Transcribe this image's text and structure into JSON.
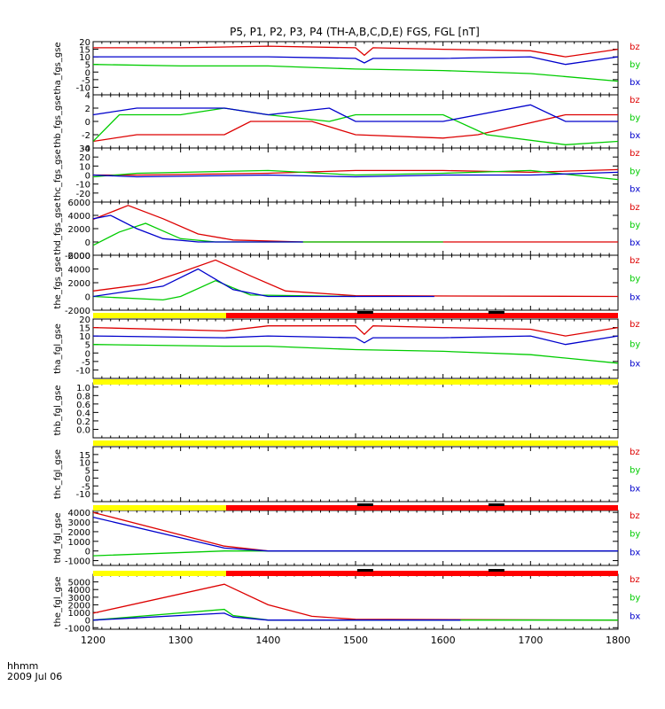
{
  "title": "P5, P1, P2, P3, P4 (TH-A,B,C,D,E) FGS, FGL [nT]",
  "time_axis": {
    "label_line1": "hhmm",
    "label_line2": "2009 Jul 06",
    "ticks": [
      "1200",
      "1300",
      "1400",
      "1500",
      "1600",
      "1700",
      "1800"
    ],
    "range": [
      1200,
      1800
    ]
  },
  "colors": {
    "bz": "#dd0000",
    "by": "#00cc00",
    "bx": "#0000cc",
    "axis": "#000000",
    "bar_yellow": "#ffff00",
    "bar_red": "#ff0000"
  },
  "chart_data": [
    {
      "type": "line",
      "ylabel": "tha_fgs_gse",
      "ylim": [
        -15,
        20
      ],
      "yticks": [
        "20",
        "15",
        "10",
        "5",
        "0",
        "-5",
        "-10"
      ],
      "legend": [
        "bz",
        "by",
        "bx"
      ],
      "series": [
        {
          "name": "bz",
          "x": [
            1200,
            1300,
            1400,
            1500,
            1510,
            1520,
            1600,
            1700,
            1740,
            1800
          ],
          "y": [
            16,
            16,
            17,
            16,
            11,
            16,
            15,
            14,
            10,
            15
          ]
        },
        {
          "name": "by",
          "x": [
            1200,
            1300,
            1400,
            1500,
            1600,
            1700,
            1800
          ],
          "y": [
            5,
            4,
            4,
            2,
            1,
            -1,
            -6
          ]
        },
        {
          "name": "bx",
          "x": [
            1200,
            1300,
            1400,
            1500,
            1510,
            1520,
            1600,
            1700,
            1740,
            1800
          ],
          "y": [
            10,
            10,
            10,
            9,
            6,
            9,
            9,
            10,
            5,
            10
          ]
        }
      ]
    },
    {
      "type": "line",
      "ylabel": "thb_fgs_gse",
      "ylim": [
        -4,
        4
      ],
      "yticks": [
        "4",
        "2",
        "0",
        "-2",
        "-4"
      ],
      "legend": [
        "bz",
        "by",
        "bx"
      ],
      "series": [
        {
          "name": "bz",
          "x": [
            1200,
            1250,
            1350,
            1380,
            1450,
            1500,
            1600,
            1640,
            1740,
            1800
          ],
          "y": [
            -3,
            -2,
            -2,
            0,
            0,
            -2,
            -2.5,
            -2,
            1,
            1
          ]
        },
        {
          "name": "by",
          "x": [
            1200,
            1230,
            1300,
            1350,
            1400,
            1470,
            1500,
            1600,
            1650,
            1740,
            1800
          ],
          "y": [
            -3,
            1,
            1,
            2,
            1,
            0,
            1,
            1,
            -2,
            -3.5,
            -3
          ]
        },
        {
          "name": "bx",
          "x": [
            1200,
            1250,
            1350,
            1400,
            1470,
            1500,
            1600,
            1700,
            1740,
            1800
          ],
          "y": [
            1,
            2,
            2,
            1,
            2,
            0,
            0,
            2.5,
            0,
            0
          ]
        }
      ]
    },
    {
      "type": "line",
      "ylabel": "thc_fgs_gse",
      "ylim": [
        -30,
        30
      ],
      "yticks": [
        "30",
        "20",
        "10",
        "0",
        "-10",
        "-20"
      ],
      "legend": [
        "bz",
        "by",
        "bx"
      ],
      "series": [
        {
          "name": "bz",
          "x": [
            1200,
            1250,
            1400,
            1500,
            1600,
            1700,
            1800
          ],
          "y": [
            0,
            0,
            2,
            5,
            5,
            3,
            6
          ]
        },
        {
          "name": "by",
          "x": [
            1200,
            1250,
            1400,
            1500,
            1600,
            1700,
            1800
          ],
          "y": [
            -2,
            2,
            5,
            0,
            2,
            5,
            -5
          ]
        },
        {
          "name": "bx",
          "x": [
            1200,
            1250,
            1400,
            1500,
            1600,
            1700,
            1800
          ],
          "y": [
            0,
            -2,
            0,
            -2,
            0,
            0,
            3
          ]
        }
      ]
    },
    {
      "type": "line",
      "ylabel": "thd_fgs_gse",
      "ylim": [
        -2000,
        6000
      ],
      "yticks": [
        "6000",
        "4000",
        "2000",
        "0",
        "-2000"
      ],
      "legend": [
        "bz",
        "by",
        "bx"
      ],
      "series": [
        {
          "name": "bz",
          "x": [
            1200,
            1240,
            1280,
            1320,
            1360,
            1440,
            1800
          ],
          "y": [
            3400,
            5500,
            3500,
            1200,
            300,
            0,
            0
          ]
        },
        {
          "name": "by",
          "x": [
            1200,
            1230,
            1260,
            1300,
            1340,
            1600
          ],
          "y": [
            -500,
            1500,
            2800,
            500,
            0,
            0
          ]
        },
        {
          "name": "bx",
          "x": [
            1200,
            1220,
            1250,
            1280,
            1320,
            1440
          ],
          "y": [
            3500,
            4000,
            2000,
            500,
            0,
            0
          ]
        }
      ]
    },
    {
      "type": "line",
      "ylabel": "the_fgs_gse",
      "ylim": [
        -2000,
        6000
      ],
      "yticks": [
        "6000",
        "4000",
        "2000",
        "0",
        "-2000"
      ],
      "legend": [
        "bz",
        "by",
        "bx"
      ],
      "series": [
        {
          "name": "bz",
          "x": [
            1200,
            1260,
            1300,
            1340,
            1380,
            1420,
            1500,
            1800
          ],
          "y": [
            800,
            1800,
            3500,
            5300,
            3000,
            800,
            100,
            0
          ]
        },
        {
          "name": "by",
          "x": [
            1200,
            1280,
            1300,
            1340,
            1380,
            1500
          ],
          "y": [
            0,
            -500,
            0,
            2300,
            200,
            0
          ]
        },
        {
          "name": "bx",
          "x": [
            1200,
            1280,
            1320,
            1360,
            1400,
            1590
          ],
          "y": [
            0,
            1500,
            4000,
            1000,
            0,
            0
          ]
        }
      ]
    },
    {
      "type": "line",
      "ylabel": "tha_fgl_gse",
      "ylim": [
        -15,
        20
      ],
      "yticks": [
        "20",
        "15",
        "10",
        "5",
        "0",
        "-5",
        "-10"
      ],
      "legend": [
        "bz",
        "by",
        "bx"
      ],
      "series": [
        {
          "name": "bz",
          "x": [
            1200,
            1350,
            1400,
            1500,
            1510,
            1520,
            1600,
            1700,
            1740,
            1800
          ],
          "y": [
            15,
            13,
            16,
            16,
            11,
            16,
            15,
            14,
            10,
            15
          ]
        },
        {
          "name": "by",
          "x": [
            1200,
            1350,
            1400,
            1500,
            1600,
            1700,
            1800
          ],
          "y": [
            5,
            4,
            4,
            2,
            1,
            -1,
            -6
          ]
        },
        {
          "name": "bx",
          "x": [
            1200,
            1350,
            1400,
            1500,
            1510,
            1520,
            1600,
            1700,
            1740,
            1800
          ],
          "y": [
            10,
            9,
            10,
            9,
            6,
            9,
            9,
            10,
            5,
            10
          ]
        }
      ]
    },
    {
      "type": "line",
      "ylabel": "thb_fgl_gse",
      "ylim": [
        -0.2,
        1.1
      ],
      "yticks": [
        "1.0",
        "0.8",
        "0.6",
        "0.4",
        "0.2",
        "0.0"
      ],
      "legend": [],
      "series": []
    },
    {
      "type": "line",
      "ylabel": "thc_fgl_gse",
      "ylim": [
        -15,
        20
      ],
      "yticks": [
        "15",
        "10",
        "5",
        "0",
        "-5",
        "-10"
      ],
      "legend": [
        "bz",
        "by",
        "bx"
      ],
      "series": []
    },
    {
      "type": "line",
      "ylabel": "thd_fgl_gse",
      "ylim": [
        -1500,
        4200
      ],
      "yticks": [
        "4000",
        "3000",
        "2000",
        "1000",
        "0",
        "-1000"
      ],
      "legend": [
        "bz",
        "by",
        "bx"
      ],
      "series": [
        {
          "name": "bz",
          "x": [
            1200,
            1350,
            1400,
            1800
          ],
          "y": [
            4000,
            500,
            0,
            0
          ]
        },
        {
          "name": "by",
          "x": [
            1200,
            1350,
            1800
          ],
          "y": [
            -500,
            0,
            0
          ]
        },
        {
          "name": "bx",
          "x": [
            1200,
            1350,
            1400,
            1800
          ],
          "y": [
            3500,
            300,
            0,
            0
          ]
        }
      ]
    },
    {
      "type": "line",
      "ylabel": "the_fgl_gse",
      "ylim": [
        -1200,
        6000
      ],
      "yticks": [
        "5000",
        "4000",
        "3000",
        "2000",
        "1000",
        "0",
        "-1000"
      ],
      "legend": [
        "bz",
        "by",
        "bx"
      ],
      "series": [
        {
          "name": "bz",
          "x": [
            1200,
            1350,
            1400,
            1450,
            1500,
            1800
          ],
          "y": [
            900,
            4700,
            2000,
            500,
            100,
            0
          ]
        },
        {
          "name": "by",
          "x": [
            1200,
            1350,
            1360,
            1400,
            1800
          ],
          "y": [
            0,
            1400,
            600,
            0,
            0
          ]
        },
        {
          "name": "bx",
          "x": [
            1200,
            1350,
            1360,
            1400,
            1620
          ],
          "y": [
            0,
            900,
            400,
            0,
            0
          ]
        }
      ]
    }
  ],
  "mode_bars": [
    {
      "segments": [
        {
          "from": 1200,
          "to": 1352,
          "color": "yellow"
        },
        {
          "from": 1352,
          "to": 1800,
          "color": "red"
        }
      ],
      "marks": [
        1510,
        1660
      ]
    },
    {
      "segments": [
        {
          "from": 1200,
          "to": 1800,
          "color": "yellow"
        }
      ],
      "marks": []
    },
    {
      "segments": [
        {
          "from": 1200,
          "to": 1800,
          "color": "yellow"
        }
      ],
      "marks": []
    },
    {
      "segments": [
        {
          "from": 1200,
          "to": 1352,
          "color": "yellow"
        },
        {
          "from": 1352,
          "to": 1800,
          "color": "red"
        }
      ],
      "marks": [
        1510,
        1660
      ]
    },
    {
      "segments": [
        {
          "from": 1200,
          "to": 1352,
          "color": "yellow"
        },
        {
          "from": 1352,
          "to": 1800,
          "color": "red"
        }
      ],
      "marks": [
        1510,
        1660
      ]
    }
  ]
}
